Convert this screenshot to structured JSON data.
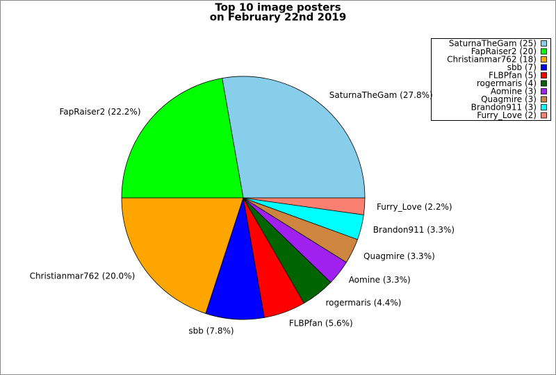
{
  "chart_data": {
    "type": "pie",
    "title": "Top 10 image posters",
    "subtitle": "on February 22nd 2019",
    "categories": [
      "SaturnaTheGam (25)",
      "FapRaiser2 (20)",
      "Christianmar762 (18)",
      "sbb (7)",
      "FLBPfan (5)",
      "rogermaris (4)",
      "Aomine (3)",
      "Quagmire (3)",
      "Brandon911 (3)",
      "Furry_Love (2)"
    ],
    "values": [
      25,
      20,
      18,
      7,
      5,
      4,
      3,
      3,
      3,
      2
    ],
    "value_labels": [
      "SaturnaTheGam (27.8%)",
      "FapRaiser2 (22.2%)",
      "Christianmar762 (20.0%)",
      "sbb (7.8%)",
      "FLBPfan (5.6%)",
      "rogermaris (4.4%)",
      "Aomine (3.3%)",
      "Quagmire (3.3%)",
      "Brandon911 (3.3%)",
      "Furry_Love (2.2%)"
    ],
    "colors": [
      "#87ceeb",
      "#00ff00",
      "#ffa500",
      "#0000ff",
      "#ff0000",
      "#006400",
      "#a020f0",
      "#cd853f",
      "#00ffff",
      "#fa8072"
    ],
    "legend": "upper right"
  }
}
